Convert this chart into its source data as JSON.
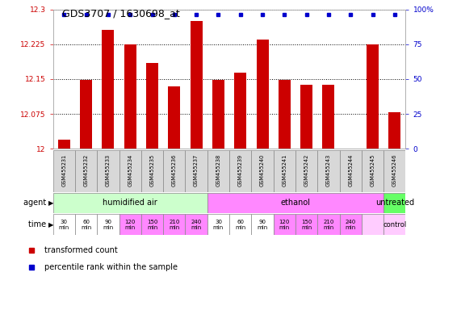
{
  "title": "GDS3707 / 1630698_at",
  "samples": [
    "GSM455231",
    "GSM455232",
    "GSM455233",
    "GSM455234",
    "GSM455235",
    "GSM455236",
    "GSM455237",
    "GSM455238",
    "GSM455239",
    "GSM455240",
    "GSM455241",
    "GSM455242",
    "GSM455243",
    "GSM455244",
    "GSM455245",
    "GSM455246"
  ],
  "bar_values": [
    12.02,
    12.148,
    12.255,
    12.225,
    12.185,
    12.135,
    12.275,
    12.148,
    12.163,
    12.235,
    12.148,
    12.138,
    12.138,
    12.0,
    12.225,
    12.078
  ],
  "ylim": [
    12.0,
    12.3
  ],
  "yticks": [
    12.0,
    12.075,
    12.15,
    12.225,
    12.3
  ],
  "ytick_labels": [
    "12",
    "12.075",
    "12.15",
    "12.225",
    "12.3"
  ],
  "right_yticks": [
    0,
    25,
    50,
    75,
    100
  ],
  "right_ytick_labels": [
    "0",
    "25",
    "50",
    "75",
    "100%"
  ],
  "bar_color": "#cc0000",
  "dot_color": "#0000cc",
  "agent_groups": [
    {
      "label": "humidified air",
      "start": 0,
      "end": 7,
      "color": "#ccffcc"
    },
    {
      "label": "ethanol",
      "start": 7,
      "end": 15,
      "color": "#ff88ff"
    },
    {
      "label": "untreated",
      "start": 15,
      "end": 16,
      "color": "#66ff66"
    }
  ],
  "time_labels": [
    "30\nmin",
    "60\nmin",
    "90\nmin",
    "120\nmin",
    "150\nmin",
    "210\nmin",
    "240\nmin",
    "30\nmin",
    "60\nmin",
    "90\nmin",
    "120\nmin",
    "150\nmin",
    "210\nmin",
    "240\nmin",
    "",
    ""
  ],
  "time_colors": [
    "#ffffff",
    "#ffffff",
    "#ffffff",
    "#ff88ff",
    "#ff88ff",
    "#ff88ff",
    "#ff88ff",
    "#ffffff",
    "#ffffff",
    "#ffffff",
    "#ff88ff",
    "#ff88ff",
    "#ff88ff",
    "#ff88ff",
    "#ffccff",
    "#ffccff"
  ],
  "bg_color": "#ffffff",
  "left_label_color": "#cc0000",
  "right_label_color": "#0000cc",
  "legend_items": [
    {
      "color": "#cc0000",
      "label": "transformed count"
    },
    {
      "color": "#0000cc",
      "label": "percentile rank within the sample"
    }
  ]
}
